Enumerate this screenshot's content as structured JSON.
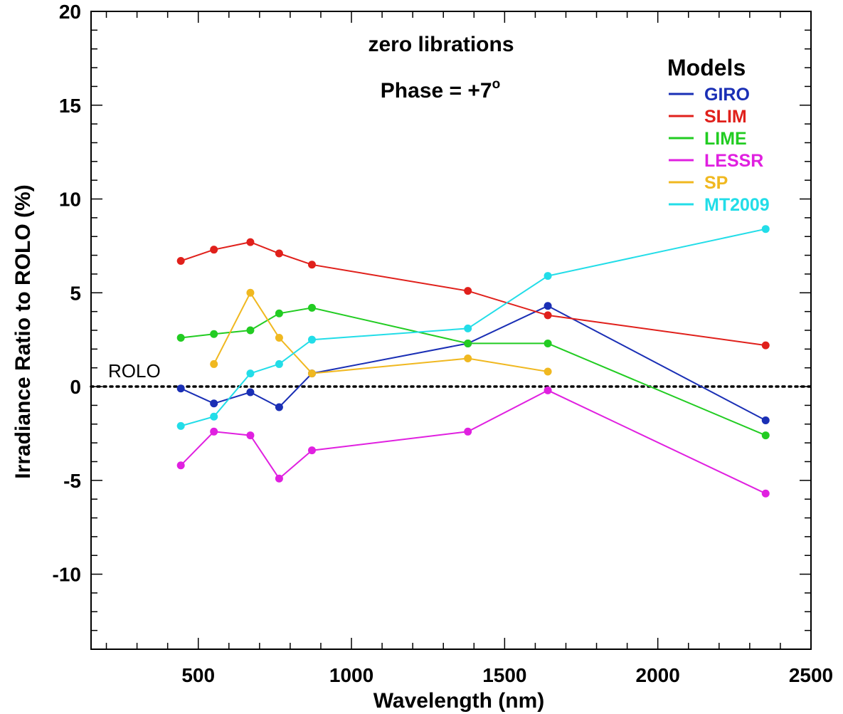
{
  "chart_data": {
    "type": "line",
    "title": "zero librations",
    "subtitle": "Phase = +7",
    "subtitle_superscript": "o",
    "xlabel": "Wavelength (nm)",
    "ylabel": "Irradiance Ratio to ROLO (%)",
    "xlim": [
      150,
      2500
    ],
    "ylim": [
      -14,
      20
    ],
    "x_ticks": [
      500,
      1000,
      1500,
      2000,
      2500
    ],
    "y_ticks": [
      -10,
      -5,
      0,
      5,
      10,
      15,
      20
    ],
    "x_minor_step": 100,
    "y_minor_step": 1,
    "grid": false,
    "legend": {
      "title": "Models",
      "position": "top-right"
    },
    "reference_line": {
      "label": "ROLO",
      "y": 0,
      "style": "dotted",
      "color": "#000000"
    },
    "series": [
      {
        "name": "GIRO",
        "color": "#1a2fb5",
        "x": [
          443,
          551,
          670,
          764,
          871,
          1380,
          1641,
          2352
        ],
        "y": [
          -0.1,
          -0.9,
          -0.3,
          -1.1,
          0.7,
          2.3,
          4.3,
          -1.8
        ]
      },
      {
        "name": "SLIM",
        "color": "#e0201b",
        "x": [
          443,
          551,
          670,
          764,
          871,
          1380,
          1641,
          2352
        ],
        "y": [
          6.7,
          7.3,
          7.7,
          7.1,
          6.5,
          5.1,
          3.8,
          2.2
        ]
      },
      {
        "name": "LIME",
        "color": "#22cc22",
        "x": [
          443,
          551,
          670,
          764,
          871,
          1380,
          1641,
          2352
        ],
        "y": [
          2.6,
          2.8,
          3.0,
          3.9,
          4.2,
          2.3,
          2.3,
          -2.6
        ]
      },
      {
        "name": "LESSR",
        "color": "#e020e0",
        "x": [
          443,
          551,
          670,
          764,
          871,
          1380,
          1641,
          2352
        ],
        "y": [
          -4.2,
          -2.4,
          -2.6,
          -4.9,
          -3.4,
          -2.4,
          -0.2,
          -5.7
        ]
      },
      {
        "name": "SP",
        "color": "#f0b820",
        "x": [
          551,
          670,
          764,
          871,
          1380,
          1641
        ],
        "y": [
          1.2,
          5.0,
          2.6,
          0.7,
          1.5,
          0.8
        ]
      },
      {
        "name": "MT2009",
        "color": "#22dde8",
        "x": [
          443,
          551,
          670,
          764,
          871,
          1380,
          1641,
          2352
        ],
        "y": [
          -2.1,
          -1.6,
          0.7,
          1.2,
          2.5,
          3.1,
          5.9,
          8.4
        ]
      }
    ]
  }
}
